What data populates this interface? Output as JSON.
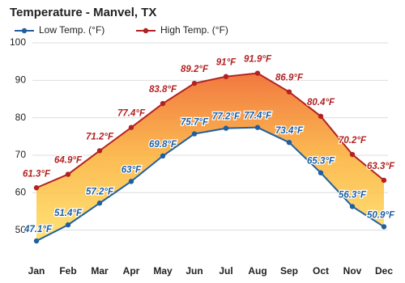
{
  "chart_data": {
    "type": "line",
    "title": "Temperature - Manvel, TX",
    "categories": [
      "Jan",
      "Feb",
      "Mar",
      "Apr",
      "May",
      "Jun",
      "Jul",
      "Aug",
      "Sep",
      "Oct",
      "Nov",
      "Dec"
    ],
    "series": [
      {
        "name": "Low Temp. (°F)",
        "color": "#1f5fa0",
        "values": [
          47.1,
          51.4,
          57.2,
          63,
          69.8,
          75.7,
          77.2,
          77.4,
          73.4,
          65.3,
          56.3,
          50.9
        ],
        "value_labels": [
          "47.1°F",
          "51.4°F",
          "57.2°F",
          "63°F",
          "69.8°F",
          "75.7°F",
          "77.2°F",
          "77.4°F",
          "73.4°F",
          "65.3°F",
          "56.3°F",
          "50.9°F"
        ]
      },
      {
        "name": "High Temp. (°F)",
        "color": "#b22222",
        "values": [
          61.3,
          64.9,
          71.2,
          77.4,
          83.8,
          89.2,
          91,
          91.9,
          86.9,
          80.4,
          70.2,
          63.3
        ],
        "value_labels": [
          "61.3°F",
          "64.9°F",
          "71.2°F",
          "77.4°F",
          "83.8°F",
          "89.2°F",
          "91°F",
          "91.9°F",
          "86.9°F",
          "80.4°F",
          "70.2°F",
          "63.3°F"
        ]
      }
    ],
    "ylim": [
      43,
      100
    ],
    "yticks": [
      50,
      60,
      70,
      80,
      90,
      100
    ],
    "grid": true
  }
}
